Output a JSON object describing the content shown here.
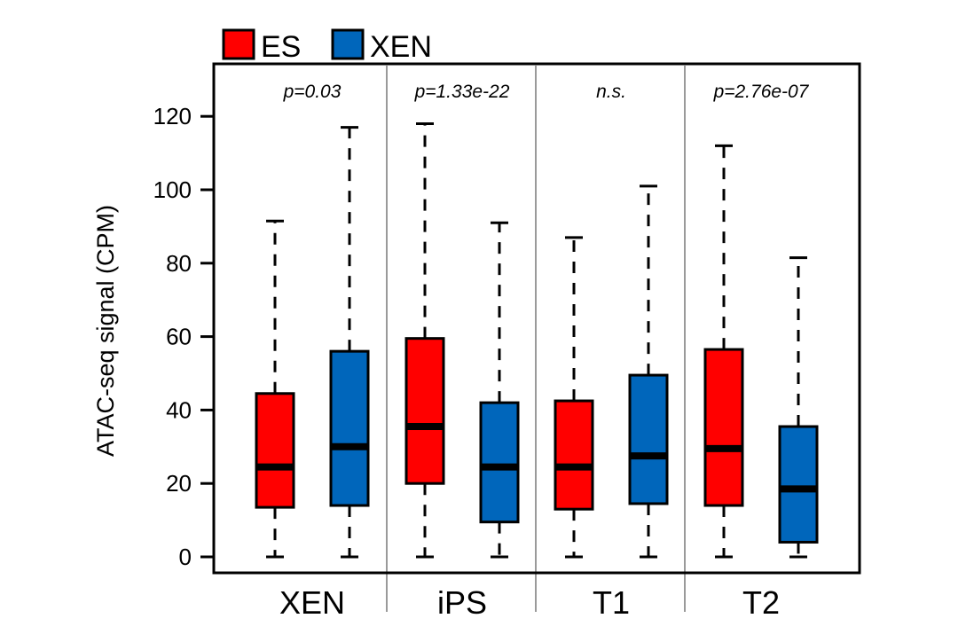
{
  "colors": {
    "ES": "#ff0000",
    "XEN": "#0066bb"
  },
  "chart_data": {
    "type": "boxplot",
    "ylabel": "ATAC-seq signal (CPM)",
    "ylim": [
      0,
      132
    ],
    "yticks": [
      "0",
      "20",
      "40",
      "60",
      "80",
      "100",
      "120"
    ],
    "legend": {
      "position": "top-left",
      "entries": [
        {
          "name": "ES",
          "color": "#ff0000"
        },
        {
          "name": "XEN",
          "color": "#0066bb"
        }
      ]
    },
    "groups": [
      {
        "label": "XEN",
        "annotation": "p=0.03",
        "boxes": [
          {
            "series": "ES",
            "whisker_low": 0,
            "q1": 13.5,
            "median": 24.5,
            "q3": 44.5,
            "whisker_high": 91.5
          },
          {
            "series": "XEN",
            "whisker_low": 0,
            "q1": 14,
            "median": 30,
            "q3": 56,
            "whisker_high": 117
          }
        ]
      },
      {
        "label": "iPS",
        "annotation": "p=1.33e-22",
        "boxes": [
          {
            "series": "ES",
            "whisker_low": 0,
            "q1": 20,
            "median": 35.5,
            "q3": 59.5,
            "whisker_high": 118
          },
          {
            "series": "XEN",
            "whisker_low": 0,
            "q1": 9.5,
            "median": 24.5,
            "q3": 42,
            "whisker_high": 91
          }
        ]
      },
      {
        "label": "T1",
        "annotation": "n.s.",
        "boxes": [
          {
            "series": "ES",
            "whisker_low": 0,
            "q1": 13,
            "median": 24.5,
            "q3": 42.5,
            "whisker_high": 87
          },
          {
            "series": "XEN",
            "whisker_low": 0,
            "q1": 14.5,
            "median": 27.5,
            "q3": 49.5,
            "whisker_high": 101
          }
        ]
      },
      {
        "label": "T2",
        "annotation": "p=2.76e-07",
        "boxes": [
          {
            "series": "ES",
            "whisker_low": 0,
            "q1": 14,
            "median": 29.5,
            "q3": 56.5,
            "whisker_high": 112
          },
          {
            "series": "XEN",
            "whisker_low": 0,
            "q1": 4,
            "median": 18.5,
            "q3": 35.5,
            "whisker_high": 81.5
          }
        ]
      }
    ]
  }
}
